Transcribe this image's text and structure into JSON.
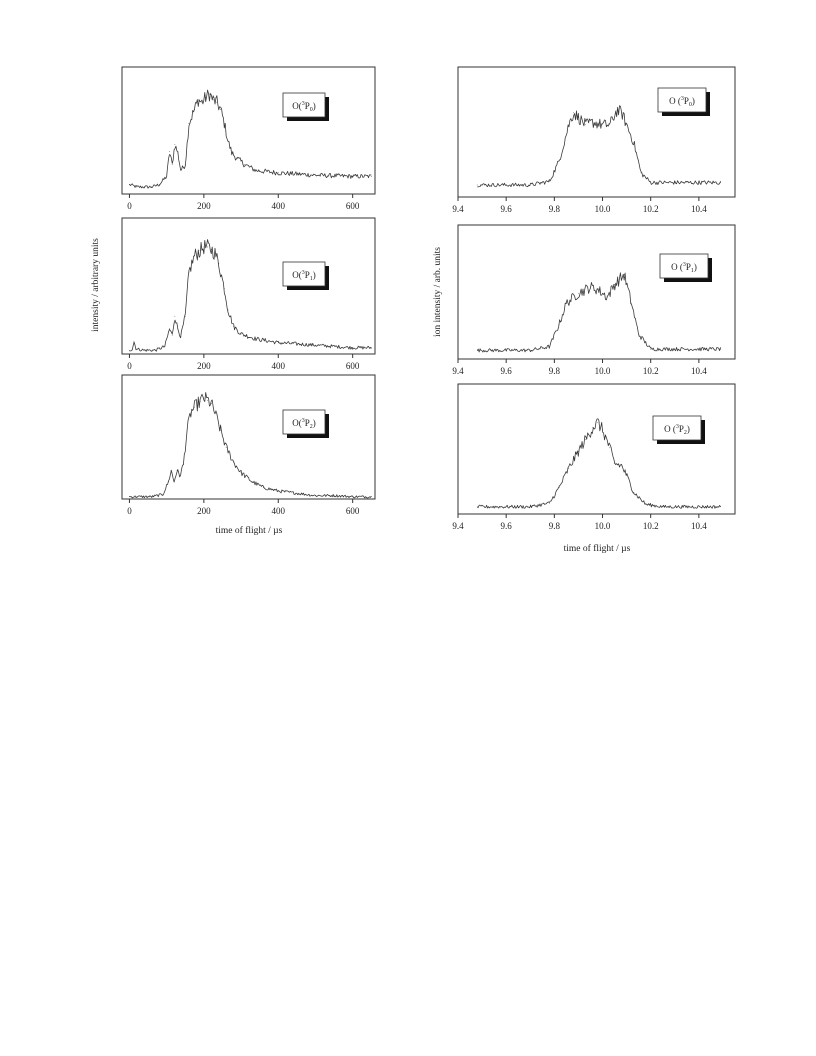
{
  "chart_data": [
    {
      "type": "line",
      "id": "left-top",
      "panel": "left",
      "legend": "O(3P0)",
      "legend_parts": {
        "pre": "O(",
        "sup": "3",
        "base": "P",
        "sub": "0",
        "post": ")"
      },
      "xlim": [
        -20,
        660
      ],
      "ylim": [
        0,
        1.08
      ],
      "xticks": [
        0,
        200,
        400,
        600
      ],
      "xtick_labels": [
        "0",
        "200",
        "400",
        "600"
      ],
      "x": [
        0,
        20,
        40,
        60,
        80,
        100,
        108,
        115,
        122,
        130,
        138,
        150,
        160,
        175,
        185,
        195,
        205,
        215,
        225,
        235,
        245,
        255,
        265,
        275,
        290,
        310,
        340,
        400,
        500,
        600,
        650
      ],
      "y": [
        0.08,
        0.06,
        0.06,
        0.06,
        0.08,
        0.15,
        0.36,
        0.25,
        0.42,
        0.35,
        0.2,
        0.25,
        0.6,
        0.72,
        0.8,
        0.78,
        0.82,
        0.85,
        0.8,
        0.78,
        0.72,
        0.6,
        0.45,
        0.35,
        0.3,
        0.25,
        0.2,
        0.18,
        0.16,
        0.15,
        0.15
      ]
    },
    {
      "type": "line",
      "id": "left-mid",
      "panel": "left",
      "legend": "O(3P1)",
      "legend_parts": {
        "pre": "O(",
        "sup": "3",
        "base": "P",
        "sub": "1",
        "post": ")"
      },
      "xlim": [
        -20,
        660
      ],
      "ylim": [
        0,
        1.08
      ],
      "xticks": [
        0,
        200,
        400,
        600
      ],
      "xtick_labels": [
        "0",
        "200",
        "400",
        "600"
      ],
      "ylabel": "intensity / arbitrary units",
      "x": [
        0,
        8,
        12,
        18,
        40,
        70,
        95,
        108,
        115,
        122,
        130,
        138,
        150,
        160,
        175,
        190,
        200,
        210,
        220,
        230,
        240,
        255,
        265,
        280,
        300,
        340,
        400,
        500,
        600,
        650
      ],
      "y": [
        0.03,
        0.04,
        0.1,
        0.04,
        0.03,
        0.03,
        0.06,
        0.2,
        0.15,
        0.3,
        0.2,
        0.14,
        0.3,
        0.65,
        0.78,
        0.82,
        0.85,
        0.85,
        0.83,
        0.8,
        0.72,
        0.52,
        0.35,
        0.22,
        0.16,
        0.12,
        0.09,
        0.07,
        0.05,
        0.05
      ]
    },
    {
      "type": "line",
      "id": "left-bot",
      "panel": "left",
      "legend": "O(3P2)",
      "legend_parts": {
        "pre": "O(",
        "sup": "3",
        "base": "P",
        "sub": "2",
        "post": ")"
      },
      "xlim": [
        -20,
        660
      ],
      "ylim": [
        0,
        1.08
      ],
      "xticks": [
        0,
        200,
        400,
        600
      ],
      "xtick_labels": [
        "0",
        "200",
        "400",
        "600"
      ],
      "xlabel": "time of flight / µs",
      "x": [
        0,
        20,
        60,
        90,
        105,
        112,
        120,
        128,
        135,
        145,
        155,
        165,
        175,
        190,
        200,
        210,
        220,
        230,
        245,
        260,
        280,
        300,
        330,
        360,
        400,
        450,
        500,
        550,
        600,
        650
      ],
      "y": [
        0.02,
        0.02,
        0.02,
        0.04,
        0.15,
        0.25,
        0.15,
        0.25,
        0.2,
        0.3,
        0.6,
        0.75,
        0.8,
        0.85,
        0.88,
        0.86,
        0.83,
        0.75,
        0.6,
        0.45,
        0.32,
        0.23,
        0.15,
        0.1,
        0.07,
        0.05,
        0.03,
        0.03,
        0.02,
        0.02
      ]
    },
    {
      "type": "line",
      "id": "right-top",
      "panel": "right",
      "legend": "O (3P0)",
      "legend_parts": {
        "pre": "O (",
        "sup": "3",
        "base": "P",
        "sub": "0",
        "post": ")"
      },
      "xlim": [
        9.4,
        10.55
      ],
      "ylim": [
        0,
        1.08
      ],
      "xticks": [
        9.4,
        9.6,
        9.8,
        10.0,
        10.2,
        10.4
      ],
      "xtick_labels": [
        "9.4",
        "9.6",
        "9.8",
        "10.0",
        "10.2",
        "10.4"
      ],
      "x": [
        9.48,
        9.6,
        9.7,
        9.78,
        9.82,
        9.86,
        9.88,
        9.9,
        9.93,
        9.96,
        10.0,
        10.03,
        10.06,
        10.08,
        10.1,
        10.13,
        10.16,
        10.2,
        10.3,
        10.49
      ],
      "y": [
        0.1,
        0.1,
        0.1,
        0.13,
        0.3,
        0.6,
        0.7,
        0.66,
        0.6,
        0.62,
        0.6,
        0.6,
        0.72,
        0.7,
        0.6,
        0.45,
        0.2,
        0.12,
        0.12,
        0.12
      ]
    },
    {
      "type": "line",
      "id": "right-mid",
      "panel": "right",
      "legend": "O (3P1)",
      "legend_parts": {
        "pre": "O (",
        "sup": "3",
        "base": "P",
        "sub": "1",
        "post": ")"
      },
      "xlim": [
        9.4,
        10.55
      ],
      "ylim": [
        0,
        1.08
      ],
      "xticks": [
        9.4,
        9.6,
        9.8,
        10.0,
        10.2,
        10.4
      ],
      "xtick_labels": [
        "9.4",
        "9.6",
        "9.8",
        "10.0",
        "10.2",
        "10.4"
      ],
      "ylabel": "ion intensity / arb. units",
      "x": [
        9.48,
        9.6,
        9.7,
        9.78,
        9.82,
        9.85,
        9.9,
        9.95,
        9.98,
        10.02,
        10.05,
        10.09,
        10.12,
        10.15,
        10.2,
        10.3,
        10.49
      ],
      "y": [
        0.07,
        0.07,
        0.07,
        0.1,
        0.28,
        0.45,
        0.53,
        0.58,
        0.56,
        0.5,
        0.6,
        0.68,
        0.45,
        0.2,
        0.08,
        0.08,
        0.08
      ]
    },
    {
      "type": "line",
      "id": "right-bot",
      "panel": "right",
      "legend": "O (3P2)",
      "legend_parts": {
        "pre": "O (",
        "sup": "3",
        "base": "P",
        "sub": "2",
        "post": ")"
      },
      "xlim": [
        9.4,
        10.55
      ],
      "ylim": [
        0,
        1.08
      ],
      "xticks": [
        9.4,
        9.6,
        9.8,
        10.0,
        10.2,
        10.4
      ],
      "xtick_labels": [
        "9.4",
        "9.6",
        "9.8",
        "10.0",
        "10.2",
        "10.4"
      ],
      "xlabel": "time of flight / µs",
      "x": [
        9.48,
        9.6,
        9.7,
        9.78,
        9.82,
        9.86,
        9.9,
        9.93,
        9.96,
        9.98,
        10.0,
        10.03,
        10.05,
        10.08,
        10.1,
        10.13,
        10.18,
        10.25,
        10.35,
        10.49
      ],
      "y": [
        0.06,
        0.06,
        0.06,
        0.09,
        0.22,
        0.38,
        0.52,
        0.62,
        0.72,
        0.76,
        0.7,
        0.55,
        0.42,
        0.4,
        0.32,
        0.18,
        0.08,
        0.06,
        0.06,
        0.06
      ]
    }
  ]
}
